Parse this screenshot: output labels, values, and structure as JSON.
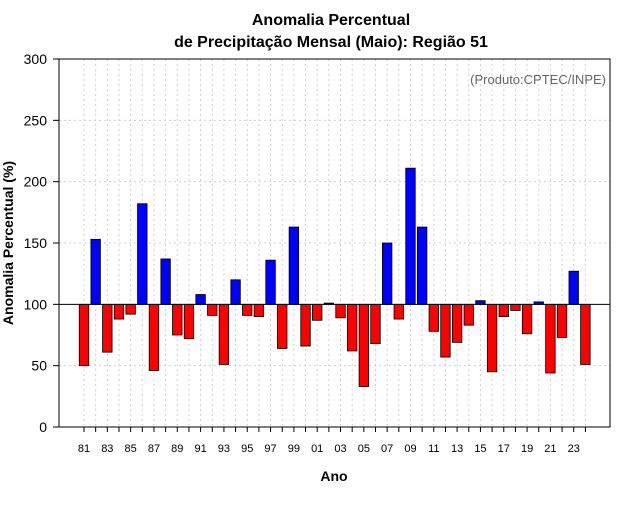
{
  "chart_data": {
    "type": "bar",
    "title_line1": "Anomalia Percentual",
    "title_line2": "de Precipitação Mensal (Maio): Região 51",
    "xlabel": "Ano",
    "ylabel": "Anomalia Percentual (%)",
    "watermark": "(Produto:CPTEC/INPE)",
    "ylim": [
      0,
      300
    ],
    "yticks": [
      0,
      50,
      100,
      150,
      200,
      250,
      300
    ],
    "baseline": 100,
    "grid": true,
    "colors": {
      "above": "#0000ff",
      "below": "#ff0000",
      "outline": "#000000",
      "grid": "#d0d0d0"
    },
    "categories": [
      "81",
      "82",
      "83",
      "84",
      "85",
      "86",
      "87",
      "88",
      "89",
      "90",
      "91",
      "92",
      "93",
      "94",
      "95",
      "96",
      "97",
      "98",
      "99",
      "00",
      "01",
      "02",
      "03",
      "04",
      "05",
      "06",
      "07",
      "08",
      "09",
      "10",
      "11",
      "12",
      "13",
      "14",
      "15",
      "16",
      "17",
      "18",
      "19",
      "20",
      "21",
      "22",
      "23",
      "24"
    ],
    "tick_labels": [
      "81",
      "83",
      "85",
      "87",
      "89",
      "91",
      "93",
      "95",
      "97",
      "99",
      "01",
      "03",
      "05",
      "07",
      "09",
      "11",
      "13",
      "15",
      "17",
      "19",
      "21",
      "23"
    ],
    "values": [
      50,
      153,
      61,
      88,
      92,
      182,
      46,
      137,
      75,
      72,
      108,
      91,
      51,
      120,
      91,
      90,
      136,
      64,
      163,
      66,
      87,
      101,
      89,
      62,
      33,
      68,
      150,
      88,
      211,
      163,
      78,
      57,
      69,
      83,
      103,
      45,
      90,
      95,
      76,
      102,
      44,
      73,
      127,
      51
    ]
  }
}
